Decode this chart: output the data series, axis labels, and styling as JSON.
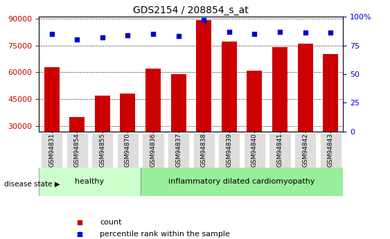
{
  "title": "GDS2154 / 208854_s_at",
  "samples": [
    "GSM94831",
    "GSM94854",
    "GSM94855",
    "GSM94870",
    "GSM94836",
    "GSM94837",
    "GSM94838",
    "GSM94839",
    "GSM94840",
    "GSM94841",
    "GSM94842",
    "GSM94843"
  ],
  "counts": [
    63000,
    35000,
    47000,
    48000,
    62000,
    59000,
    89000,
    77000,
    61000,
    74000,
    76000,
    70000
  ],
  "percentiles": [
    85,
    80,
    82,
    84,
    85,
    83,
    97,
    87,
    85,
    87,
    86,
    86
  ],
  "healthy_group": [
    "GSM94831",
    "GSM94854",
    "GSM94855",
    "GSM94870"
  ],
  "disease_group": [
    "GSM94836",
    "GSM94837",
    "GSM94838",
    "GSM94839",
    "GSM94840",
    "GSM94841",
    "GSM94842",
    "GSM94843"
  ],
  "ylim_left": [
    27000,
    91000
  ],
  "ylim_right": [
    0,
    100
  ],
  "yticks_left": [
    30000,
    45000,
    60000,
    75000,
    90000
  ],
  "yticks_right": [
    0,
    25,
    50,
    75,
    100
  ],
  "bar_color": "#cc0000",
  "dot_color": "#0000cc",
  "healthy_fill": "#ccffcc",
  "disease_fill": "#99ee99",
  "label_bg": "#dddddd",
  "grid_color": "#000000",
  "legend_count_label": "count",
  "legend_pct_label": "percentile rank within the sample",
  "disease_state_label": "disease state",
  "healthy_label": "healthy",
  "disease_label": "inflammatory dilated cardiomyopathy"
}
